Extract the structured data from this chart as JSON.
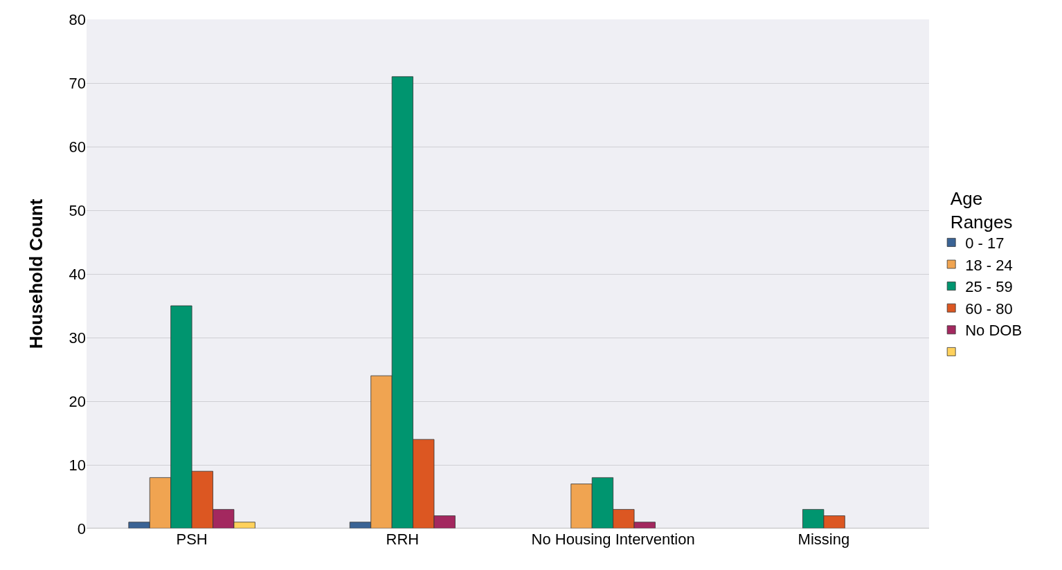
{
  "chart_data": {
    "type": "bar",
    "ylabel": "Household Count",
    "legend_title": "Age Ranges",
    "legend": "right",
    "grid": "y",
    "categories": [
      "PSH",
      "RRH",
      "No Housing Intervention",
      "Missing"
    ],
    "ylim": [
      0,
      80
    ],
    "yticks": [
      0,
      10,
      20,
      30,
      40,
      50,
      60,
      70,
      80
    ],
    "series": [
      {
        "name": "0 - 17",
        "color": "#3a6395",
        "values": [
          1,
          1,
          null,
          null
        ]
      },
      {
        "name": "18 - 24",
        "color": "#f0a451",
        "values": [
          8,
          24,
          7,
          null
        ]
      },
      {
        "name": "25 - 59",
        "color": "#00956f",
        "values": [
          35,
          71,
          8,
          3
        ]
      },
      {
        "name": "60 - 80",
        "color": "#dc5722",
        "values": [
          9,
          14,
          3,
          2
        ]
      },
      {
        "name": "No DOB",
        "color": "#a3285f",
        "values": [
          3,
          2,
          1,
          null
        ]
      },
      {
        "color": "#ffd15c",
        "values": [
          1,
          null,
          null,
          null
        ]
      }
    ]
  }
}
